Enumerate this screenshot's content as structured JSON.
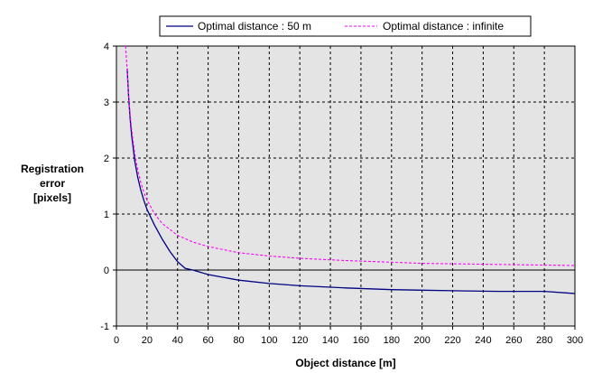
{
  "chart_data": {
    "type": "line",
    "title": "",
    "xlabel": "Object distance [m]",
    "ylabel": [
      "Registration",
      "error",
      "[pixels]"
    ],
    "xlim": [
      0,
      300
    ],
    "ylim": [
      -1,
      4
    ],
    "xticks": [
      "0",
      "20",
      "40",
      "60",
      "80",
      "100",
      "120",
      "140",
      "160",
      "180",
      "200",
      "220",
      "240",
      "260",
      "280",
      "300"
    ],
    "yticks": [
      "-1",
      "0",
      "1",
      "2",
      "3",
      "4"
    ],
    "grid": true,
    "legend": "top",
    "series": [
      {
        "name": "Optimal distance : 50 m",
        "color": "#000080",
        "style": "solid",
        "x": [
          7,
          8,
          9,
          10,
          12,
          14,
          16,
          18,
          20,
          25,
          30,
          35,
          40,
          45,
          50,
          60,
          70,
          80,
          100,
          120,
          150,
          180,
          200,
          220,
          250,
          280,
          300
        ],
        "y": [
          3.6,
          3.1,
          2.7,
          2.4,
          1.95,
          1.65,
          1.42,
          1.24,
          1.08,
          0.8,
          0.55,
          0.33,
          0.15,
          0.03,
          0.0,
          -0.08,
          -0.13,
          -0.18,
          -0.24,
          -0.28,
          -0.32,
          -0.35,
          -0.36,
          -0.37,
          -0.38,
          -0.38,
          -0.42
        ]
      },
      {
        "name": "Optimal distance : infinite",
        "color": "#ff00ff",
        "style": "dashed",
        "x": [
          6,
          7,
          8,
          9,
          10,
          12,
          14,
          16,
          18,
          20,
          25,
          30,
          40,
          50,
          60,
          80,
          100,
          120,
          150,
          200,
          250,
          300
        ],
        "y": [
          4.0,
          3.55,
          3.12,
          2.78,
          2.5,
          2.08,
          1.78,
          1.56,
          1.38,
          1.25,
          1.0,
          0.83,
          0.62,
          0.5,
          0.42,
          0.31,
          0.25,
          0.21,
          0.17,
          0.12,
          0.1,
          0.08
        ]
      }
    ]
  }
}
